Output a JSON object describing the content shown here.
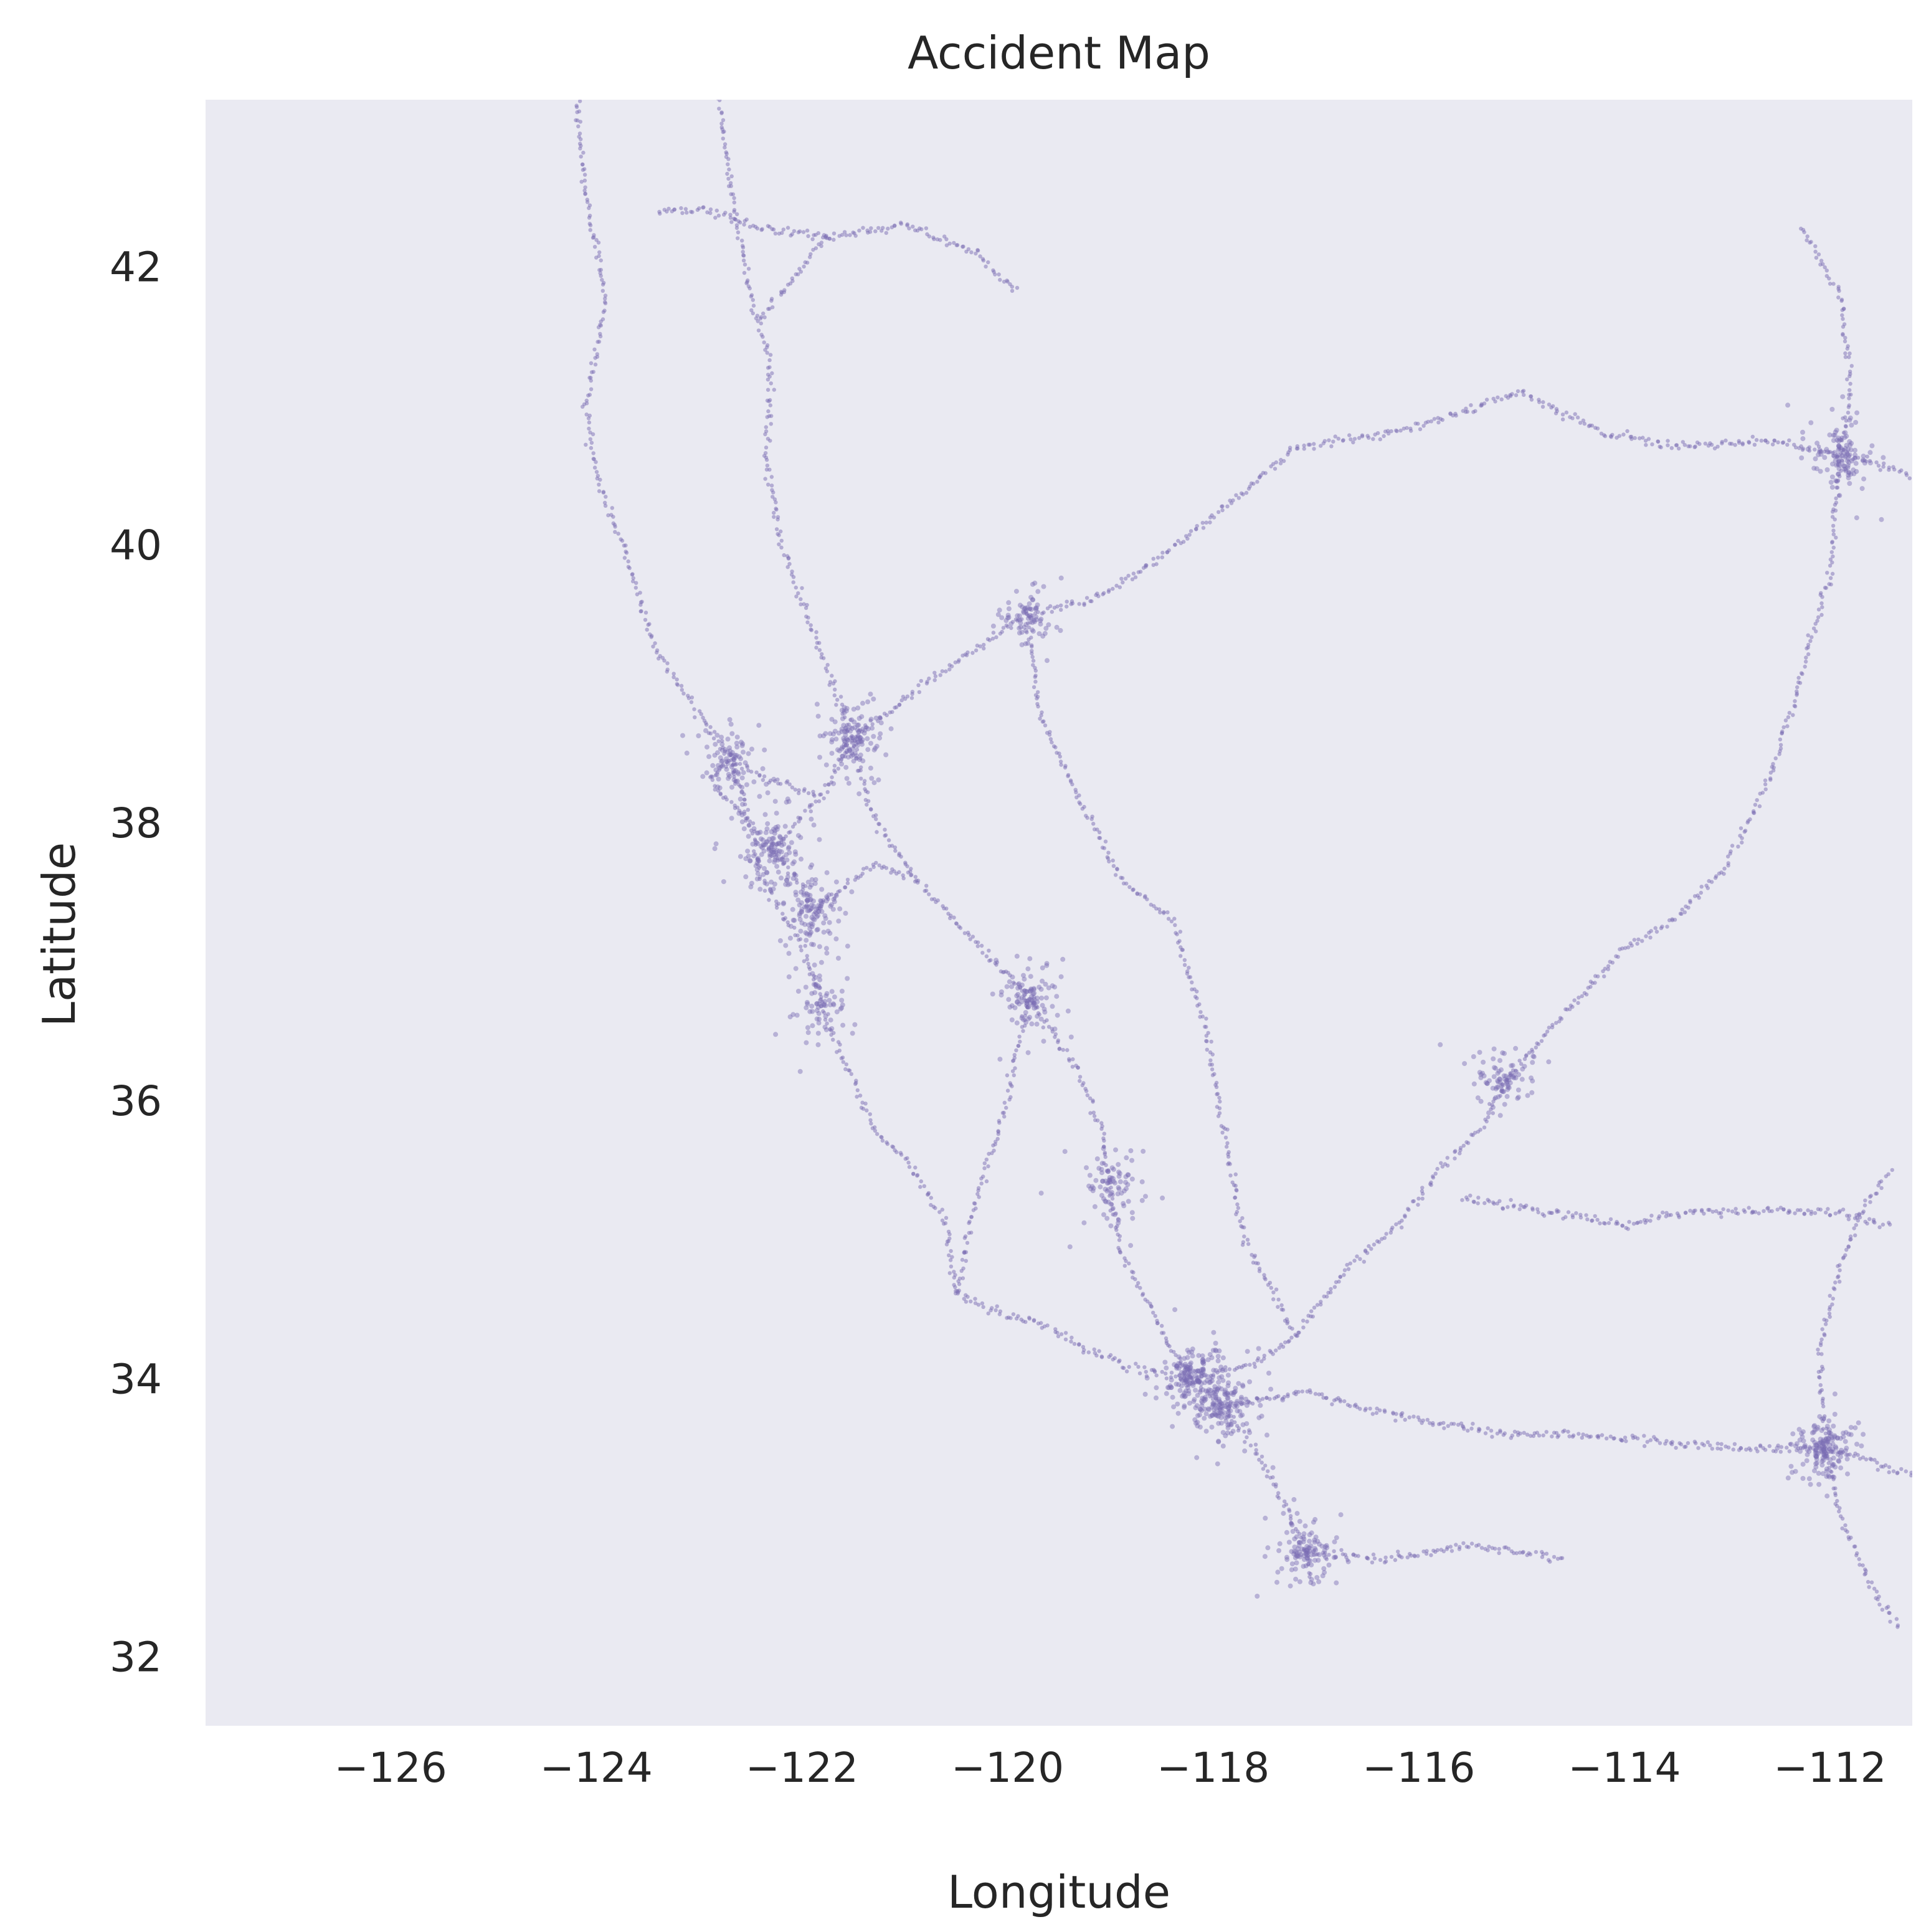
{
  "chart_data": {
    "type": "scatter",
    "title": "Accident Map",
    "xlabel": "Longitude",
    "ylabel": "Latitude",
    "xlim": [
      -127.8,
      -111.2
    ],
    "ylim": [
      31.5,
      43.2
    ],
    "xticks": [
      -126,
      -124,
      -122,
      -120,
      -118,
      -116,
      -114,
      -112
    ],
    "yticks": [
      32,
      34,
      36,
      38,
      40,
      42
    ],
    "xtick_labels": [
      "−126",
      "−124",
      "−122",
      "−120",
      "−118",
      "−116",
      "−114",
      "−112"
    ],
    "ytick_labels": [
      "32",
      "34",
      "36",
      "38",
      "40",
      "42"
    ],
    "grid": false,
    "colors": {
      "points": "#7b6db4",
      "plot_background": "#eaeaf2"
    },
    "series": [
      {
        "marker": "point",
        "note_density": "dense clusters along highways",
        "hotspots": [
          {
            "lon": -118.2,
            "lat": 34.0,
            "weight": 1.0
          },
          {
            "lon": -117.9,
            "lat": 33.8,
            "weight": 0.8
          },
          {
            "lon": -117.1,
            "lat": 32.75,
            "weight": 0.6
          },
          {
            "lon": -121.5,
            "lat": 38.6,
            "weight": 0.7
          },
          {
            "lon": -122.3,
            "lat": 37.8,
            "weight": 0.8
          },
          {
            "lon": -121.9,
            "lat": 37.35,
            "weight": 0.6
          },
          {
            "lon": -119.8,
            "lat": 36.75,
            "weight": 0.5
          },
          {
            "lon": -119.0,
            "lat": 35.37,
            "weight": 0.4
          },
          {
            "lon": -115.15,
            "lat": 36.15,
            "weight": 0.4
          },
          {
            "lon": -112.05,
            "lat": 33.5,
            "weight": 0.9
          },
          {
            "lon": -111.9,
            "lat": 40.65,
            "weight": 0.6
          },
          {
            "lon": -119.8,
            "lat": 39.5,
            "weight": 0.3
          },
          {
            "lon": -122.7,
            "lat": 38.45,
            "weight": 0.4
          },
          {
            "lon": -121.8,
            "lat": 36.7,
            "weight": 0.3
          }
        ],
        "routes": [
          [
            [
              -124.2,
              43.2
            ],
            [
              -124.1,
              42.5
            ],
            [
              -123.9,
              41.8
            ],
            [
              -124.1,
              41.0
            ],
            [
              -124.0,
              40.5
            ],
            [
              -123.7,
              39.9
            ],
            [
              -123.4,
              39.2
            ],
            [
              -123.0,
              38.8
            ],
            [
              -122.7,
              38.45
            ],
            [
              -122.5,
              38.0
            ],
            [
              -122.4,
              37.6
            ],
            [
              -122.0,
              37.1
            ],
            [
              -121.8,
              36.7
            ],
            [
              -121.6,
              36.3
            ],
            [
              -121.3,
              35.8
            ],
            [
              -120.9,
              35.5
            ],
            [
              -120.6,
              35.1
            ],
            [
              -120.5,
              34.6
            ],
            [
              -120.0,
              34.45
            ],
            [
              -119.7,
              34.4
            ],
            [
              -119.2,
              34.2
            ],
            [
              -118.7,
              34.05
            ],
            [
              -118.2,
              34.0
            ]
          ],
          [
            [
              -122.8,
              43.2
            ],
            [
              -122.7,
              42.6
            ],
            [
              -122.5,
              41.8
            ],
            [
              -122.3,
              41.3
            ],
            [
              -122.35,
              40.6
            ],
            [
              -122.2,
              40.0
            ],
            [
              -121.9,
              39.4
            ],
            [
              -121.5,
              38.6
            ],
            [
              -121.3,
              38.0
            ],
            [
              -120.9,
              37.6
            ],
            [
              -120.4,
              37.2
            ],
            [
              -119.8,
              36.75
            ],
            [
              -119.3,
              36.2
            ],
            [
              -119.1,
              35.8
            ],
            [
              -119.0,
              35.37
            ],
            [
              -118.9,
              34.9
            ],
            [
              -118.6,
              34.5
            ],
            [
              -118.4,
              34.2
            ],
            [
              -118.2,
              34.0
            ],
            [
              -117.9,
              33.8
            ],
            [
              -117.6,
              33.5
            ],
            [
              -117.3,
              33.1
            ],
            [
              -117.1,
              32.75
            ],
            [
              -117.05,
              32.55
            ]
          ],
          [
            [
              -122.3,
              37.8
            ],
            [
              -121.8,
              38.2
            ],
            [
              -121.5,
              38.6
            ],
            [
              -120.8,
              39.0
            ],
            [
              -120.2,
              39.3
            ],
            [
              -119.8,
              39.5
            ],
            [
              -119.2,
              39.6
            ],
            [
              -118.7,
              39.8
            ],
            [
              -118.0,
              40.2
            ],
            [
              -117.2,
              40.7
            ],
            [
              -116.3,
              40.8
            ],
            [
              -115.8,
              40.9
            ],
            [
              -115.0,
              41.1
            ],
            [
              -114.2,
              40.8
            ],
            [
              -113.3,
              40.7
            ],
            [
              -112.6,
              40.75
            ],
            [
              -111.9,
              40.65
            ],
            [
              -111.2,
              40.5
            ]
          ],
          [
            [
              -118.2,
              34.0
            ],
            [
              -117.6,
              34.1
            ],
            [
              -117.2,
              34.3
            ],
            [
              -116.7,
              34.8
            ],
            [
              -116.2,
              35.1
            ],
            [
              -115.8,
              35.5
            ],
            [
              -115.4,
              35.8
            ],
            [
              -115.15,
              36.15
            ],
            [
              -114.6,
              36.6
            ],
            [
              -114.0,
              37.1
            ],
            [
              -113.5,
              37.3
            ],
            [
              -113.0,
              37.7
            ],
            [
              -112.6,
              38.3
            ],
            [
              -112.3,
              39.0
            ],
            [
              -112.0,
              39.8
            ],
            [
              -111.9,
              40.65
            ],
            [
              -111.8,
              41.2
            ],
            [
              -111.9,
              41.8
            ],
            [
              -112.3,
              42.3
            ]
          ],
          [
            [
              -117.9,
              33.8
            ],
            [
              -117.1,
              33.9
            ],
            [
              -116.6,
              33.8
            ],
            [
              -116.0,
              33.7
            ],
            [
              -115.2,
              33.6
            ],
            [
              -114.6,
              33.6
            ],
            [
              -113.7,
              33.55
            ],
            [
              -112.9,
              33.5
            ],
            [
              -112.05,
              33.5
            ],
            [
              -111.6,
              33.4
            ],
            [
              -111.2,
              33.3
            ]
          ],
          [
            [
              -112.05,
              33.5
            ],
            [
              -111.9,
              33.0
            ],
            [
              -111.6,
              32.5
            ],
            [
              -111.3,
              32.2
            ]
          ],
          [
            [
              -112.05,
              33.5
            ],
            [
              -112.1,
              34.2
            ],
            [
              -111.9,
              34.8
            ],
            [
              -111.7,
              35.2
            ],
            [
              -111.4,
              35.5
            ]
          ],
          [
            [
              -114.6,
              32.7
            ],
            [
              -115.5,
              32.8
            ],
            [
              -116.3,
              32.7
            ],
            [
              -117.1,
              32.75
            ]
          ],
          [
            [
              -122.3,
              37.8
            ],
            [
              -122.0,
              37.55
            ],
            [
              -121.9,
              37.35
            ],
            [
              -121.3,
              37.7
            ],
            [
              -120.9,
              37.6
            ]
          ],
          [
            [
              -122.5,
              38.0
            ],
            [
              -122.9,
              38.3
            ],
            [
              -122.7,
              38.45
            ],
            [
              -122.3,
              38.3
            ],
            [
              -121.8,
              38.2
            ]
          ],
          [
            [
              -122.4,
              41.6
            ],
            [
              -121.8,
              42.2
            ],
            [
              -121.0,
              42.3
            ],
            [
              -120.3,
              42.1
            ],
            [
              -119.9,
              41.8
            ]
          ],
          [
            [
              -123.4,
              42.4
            ],
            [
              -122.9,
              42.4
            ],
            [
              -122.5,
              42.3
            ],
            [
              -121.7,
              42.2
            ]
          ],
          [
            [
              -119.8,
              39.5
            ],
            [
              -119.7,
              38.8
            ],
            [
              -119.4,
              38.3
            ],
            [
              -118.9,
              37.6
            ],
            [
              -118.4,
              37.3
            ],
            [
              -118.1,
              36.6
            ],
            [
              -117.9,
              35.8
            ],
            [
              -117.7,
              35.0
            ],
            [
              -117.2,
              34.3
            ]
          ],
          [
            [
              -120.5,
              34.6
            ],
            [
              -120.3,
              35.3
            ],
            [
              -120.0,
              36.0
            ],
            [
              -119.8,
              36.75
            ]
          ],
          [
            [
              -114.0,
              35.1
            ],
            [
              -114.8,
              35.2
            ],
            [
              -115.6,
              35.3
            ]
          ],
          [
            [
              -114.0,
              35.1
            ],
            [
              -113.4,
              35.2
            ],
            [
              -112.7,
              35.2
            ],
            [
              -112.0,
              35.2
            ],
            [
              -111.4,
              35.1
            ]
          ]
        ]
      }
    ]
  }
}
